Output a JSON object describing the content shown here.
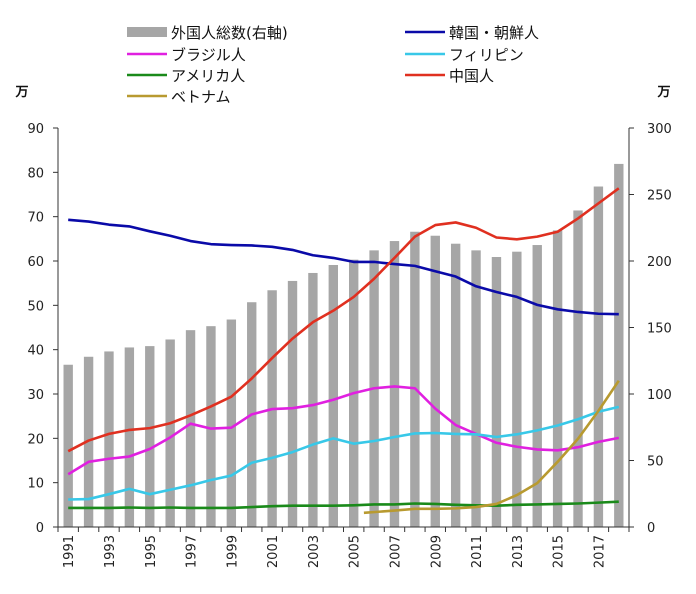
{
  "chart_data": {
    "type": "bar+line",
    "x": [
      1991,
      1992,
      1993,
      1994,
      1995,
      1996,
      1997,
      1998,
      1999,
      2000,
      2001,
      2002,
      2003,
      2004,
      2005,
      2006,
      2007,
      2008,
      2009,
      2010,
      2011,
      2012,
      2013,
      2014,
      2015,
      2016,
      2017,
      2018
    ],
    "x_tick_labels": [
      "1991",
      "1993",
      "1995",
      "1997",
      "1999",
      "2001",
      "2003",
      "2005",
      "2007",
      "2009",
      "2011",
      "2013",
      "2015",
      "2017"
    ],
    "left_axis": {
      "unit": "万",
      "ylim": [
        0,
        90
      ],
      "ticks": [
        0,
        10,
        20,
        30,
        40,
        50,
        60,
        70,
        80,
        90
      ]
    },
    "right_axis": {
      "unit": "万",
      "ylim": [
        0,
        300
      ],
      "ticks": [
        0,
        50,
        100,
        150,
        200,
        250,
        300
      ]
    },
    "bar_series": {
      "name": "外国人総数(右軸)",
      "axis": "right",
      "color": "#a6a6a6",
      "values": [
        122,
        128,
        132,
        135,
        136,
        141,
        148,
        151,
        156,
        169,
        178,
        185,
        191,
        197,
        201,
        208,
        215,
        222,
        219,
        213,
        208,
        203,
        207,
        212,
        223,
        238,
        256,
        273
      ]
    },
    "series": [
      {
        "name": "韓国・朝鮮人",
        "axis": "left",
        "color": "#0a0aa8",
        "values": [
          69.3,
          68.9,
          68.2,
          67.8,
          66.7,
          65.7,
          64.5,
          63.8,
          63.6,
          63.5,
          63.2,
          62.5,
          61.3,
          60.7,
          59.8,
          59.8,
          59.3,
          58.9,
          57.7,
          56.5,
          54.3,
          53.0,
          51.9,
          50.1,
          49.1,
          48.5,
          48.1,
          48.0
        ]
      },
      {
        "name": "中国人",
        "axis": "left",
        "color": "#e03020",
        "values": [
          17.1,
          19.5,
          21.0,
          21.9,
          22.3,
          23.4,
          25.2,
          27.2,
          29.4,
          33.5,
          38.1,
          42.5,
          46.2,
          48.8,
          51.9,
          56.0,
          60.7,
          65.5,
          68.1,
          68.7,
          67.5,
          65.3,
          64.9,
          65.5,
          66.6,
          69.6,
          73.0,
          76.4
        ]
      },
      {
        "name": "ブラジル人",
        "axis": "left",
        "color": "#e020e0",
        "values": [
          11.9,
          14.7,
          15.4,
          15.9,
          17.6,
          20.2,
          23.3,
          22.2,
          22.4,
          25.4,
          26.6,
          26.8,
          27.5,
          28.7,
          30.2,
          31.3,
          31.7,
          31.3,
          26.7,
          23.0,
          21.0,
          19.0,
          18.1,
          17.5,
          17.3,
          18.0,
          19.2,
          20.1
        ]
      },
      {
        "name": "フィリピン",
        "axis": "left",
        "color": "#38c8e8",
        "values": [
          6.2,
          6.3,
          7.4,
          8.6,
          7.4,
          8.4,
          9.4,
          10.6,
          11.6,
          14.5,
          15.6,
          16.9,
          18.6,
          20.0,
          18.8,
          19.4,
          20.3,
          21.1,
          21.2,
          21.0,
          20.9,
          20.3,
          20.9,
          21.8,
          22.9,
          24.3,
          26.0,
          27.1
        ]
      },
      {
        "name": "アメリカ人",
        "axis": "left",
        "color": "#1a8a1a",
        "values": [
          4.3,
          4.3,
          4.3,
          4.4,
          4.3,
          4.4,
          4.3,
          4.3,
          4.3,
          4.5,
          4.7,
          4.8,
          4.8,
          4.8,
          4.9,
          5.1,
          5.1,
          5.3,
          5.2,
          5.0,
          4.9,
          4.8,
          5.0,
          5.1,
          5.2,
          5.3,
          5.5,
          5.7
        ]
      },
      {
        "name": "ベトナム",
        "axis": "left",
        "color": "#b89a30",
        "start_year": 2006,
        "values": [
          null,
          null,
          null,
          null,
          null,
          null,
          null,
          null,
          null,
          null,
          null,
          null,
          null,
          null,
          null,
          3.2,
          3.7,
          4.1,
          4.1,
          4.2,
          4.5,
          5.2,
          7.2,
          9.9,
          14.7,
          19.9,
          26.2,
          33.0
        ]
      }
    ],
    "legend": {
      "placement": "top",
      "items": [
        {
          "label": "外国人総数(右軸)",
          "kind": "bar",
          "color": "#a6a6a6"
        },
        {
          "label": "韓国・朝鮮人",
          "kind": "line",
          "color": "#0a0aa8"
        },
        {
          "label": "ブラジル人",
          "kind": "line",
          "color": "#e020e0"
        },
        {
          "label": "フィリピン",
          "kind": "line",
          "color": "#38c8e8"
        },
        {
          "label": "アメリカ人",
          "kind": "line",
          "color": "#1a8a1a"
        },
        {
          "label": "中国人",
          "kind": "line",
          "color": "#e03020"
        },
        {
          "label": "ベトナム",
          "kind": "line",
          "color": "#b89a30"
        }
      ]
    },
    "grid": false
  }
}
